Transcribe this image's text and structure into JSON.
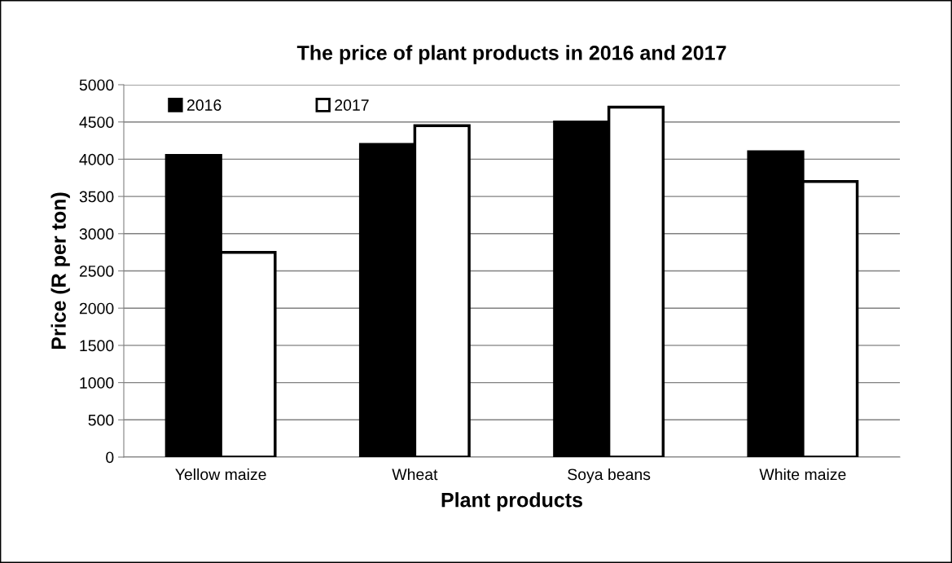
{
  "chart_data": {
    "type": "bar",
    "title": "The price of plant products in 2016 and 2017",
    "xlabel": "Plant products",
    "ylabel": "Price (R per ton)",
    "categories": [
      "Yellow maize",
      "Wheat",
      "Soya beans",
      "White maize"
    ],
    "series": [
      {
        "name": "2016",
        "color": "#000000",
        "values": [
          4050,
          4200,
          4500,
          4100
        ]
      },
      {
        "name": "2017",
        "color": "#ffffff",
        "values": [
          2750,
          4450,
          4700,
          3700
        ]
      }
    ],
    "ylim": [
      0,
      5000
    ],
    "yticks": [
      0,
      500,
      1000,
      1500,
      2000,
      2500,
      3000,
      3500,
      4000,
      4500,
      5000
    ],
    "grid": "y",
    "legend": "top left"
  }
}
